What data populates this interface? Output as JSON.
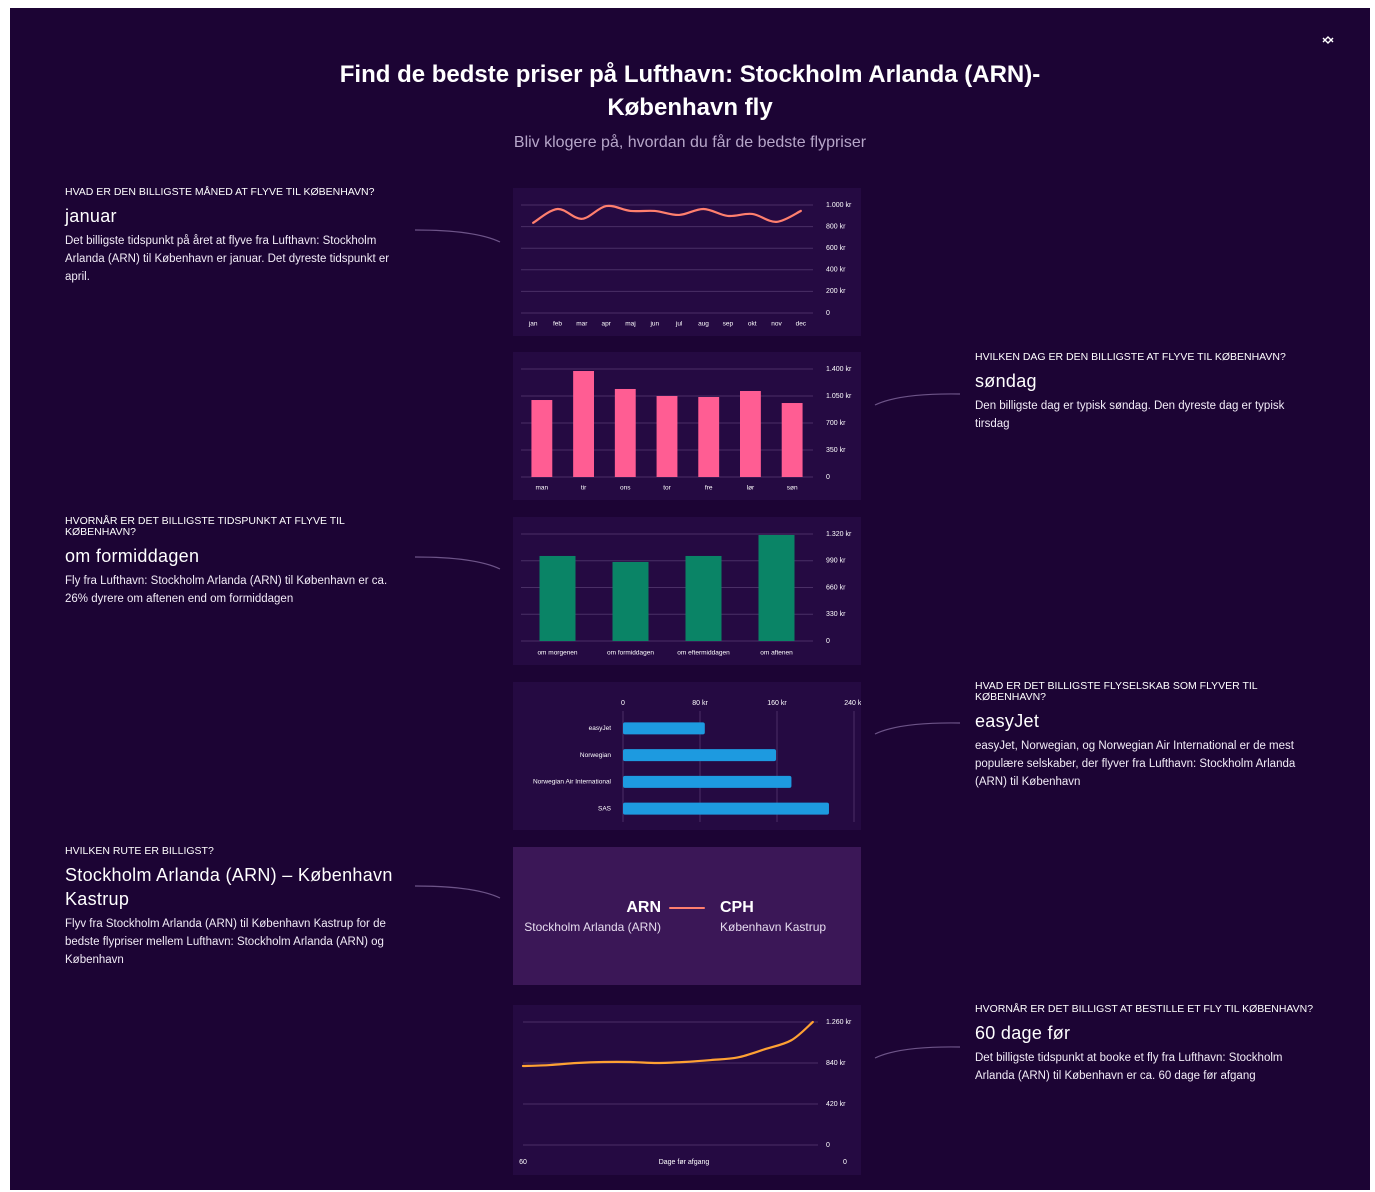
{
  "header": {
    "title": "Find de bedste priser på Lufthavn: Stockholm Arlanda (ARN)-København fly",
    "subtitle": "Bliv klogere på, hvordan du får de bedste flypriser"
  },
  "sections": [
    {
      "question": "HVAD ER DEN BILLIGSTE MÅNED AT FLYVE TIL KØBENHAVN?",
      "answer": "januar",
      "description": "Det billigste tidspunkt på året at flyve fra Lufthavn: Stockholm Arlanda (ARN) til København er januar. Det dyreste tidspunkt er april."
    },
    {
      "question": "HVILKEN DAG ER DEN BILLIGSTE AT FLYVE TIL KØBENHAVN?",
      "answer": "søndag",
      "description": "Den billigste dag er typisk søndag. Den dyreste dag er typisk tirsdag"
    },
    {
      "question": "HVORNÅR ER DET BILLIGSTE TIDSPUNKT AT FLYVE TIL KØBENHAVN?",
      "answer": "om formiddagen",
      "description": "Fly fra Lufthavn: Stockholm Arlanda (ARN) til København er ca. 26% dyrere om aftenen end om formiddagen"
    },
    {
      "question": "HVAD ER DET BILLIGSTE FLYSELSKAB SOM FLYVER TIL KØBENHAVN?",
      "answer": "easyJet",
      "description": "easyJet, Norwegian, og Norwegian Air International er de mest populære selskaber, der flyver fra Lufthavn: Stockholm Arlanda (ARN) til København"
    },
    {
      "question": "HVILKEN RUTE ER BILLIGST?",
      "answer": "Stockholm Arlanda (ARN) – København Kastrup",
      "description": "Flyv fra Stockholm Arlanda (ARN) til København Kastrup for de bedste flypriser mellem Lufthavn: Stockholm Arlanda (ARN) og København"
    },
    {
      "question": "HVORNÅR ER DET BILLIGST AT BESTILLE ET FLY TIL KØBENHAVN?",
      "answer": "60 dage før",
      "description": "Det billigste tidspunkt at booke et fly fra Lufthavn: Stockholm Arlanda (ARN) til København er ca. 60 dage før afgang"
    }
  ],
  "route": {
    "from_code": "ARN",
    "from_name": "Stockholm Arlanda (ARN)",
    "to_code": "CPH",
    "to_name": "København Kastrup"
  },
  "chart_data": [
    {
      "type": "line",
      "categories": [
        "jan",
        "feb",
        "mar",
        "apr",
        "maj",
        "jun",
        "jul",
        "aug",
        "sep",
        "okt",
        "nov",
        "dec"
      ],
      "values": [
        835,
        963,
        872,
        990,
        945,
        945,
        908,
        963,
        899,
        917,
        844,
        945
      ],
      "color": "#ff7f6e",
      "ylim": [
        0,
        1000
      ],
      "yticks": [
        0,
        {
          "value": 200,
          "label": "200 kr"
        },
        {
          "value": 400,
          "label": "400 kr"
        },
        {
          "value": 600,
          "label": "600 kr"
        },
        {
          "value": 800,
          "label": "800 kr"
        },
        {
          "value": 1000,
          "label": "1.000 kr"
        }
      ],
      "grid": true
    },
    {
      "type": "bar",
      "categories": [
        "man",
        "tir",
        "ons",
        "tor",
        "fre",
        "lør",
        "søn"
      ],
      "values": [
        998,
        1374,
        1141,
        1050,
        1037,
        1115,
        959
      ],
      "color": "#ff5d93",
      "ylim": [
        0,
        1400
      ],
      "yticks": [
        0,
        {
          "value": 350,
          "label": "350 kr"
        },
        {
          "value": 700,
          "label": "700 kr"
        },
        {
          "value": 1050,
          "label": "1.050 kr"
        },
        {
          "value": 1400,
          "label": "1.400 kr"
        }
      ],
      "grid": true
    },
    {
      "type": "bar",
      "categories": [
        "om morgenen",
        "om formiddagen",
        "om eftermiddagen",
        "om aftenen"
      ],
      "values": [
        1049,
        975,
        1049,
        1308
      ],
      "color": "#0a8466",
      "ylim": [
        0,
        1320
      ],
      "yticks": [
        0,
        {
          "value": 330,
          "label": "330 kr"
        },
        {
          "value": 660,
          "label": "660 kr"
        },
        {
          "value": 990,
          "label": "990 kr"
        },
        {
          "value": 1320,
          "label": "1.320 kr"
        }
      ],
      "grid": true
    },
    {
      "type": "barh",
      "categories": [
        "easyJet",
        "Norwegian",
        "Norwegian Air International",
        "SAS"
      ],
      "values": [
        85,
        159,
        175,
        214
      ],
      "color": "#1d9ae0",
      "xlim": [
        0,
        240
      ],
      "xticks": [
        0,
        {
          "value": 80,
          "label": "80 kr"
        },
        {
          "value": 160,
          "label": "160 kr"
        },
        {
          "value": 240,
          "label": "240 kr"
        }
      ],
      "grid": true
    },
    {
      "type": "line",
      "x": [
        60,
        55,
        50,
        45,
        40,
        35,
        30,
        25,
        20,
        15,
        10,
        6
      ],
      "values": [
        809,
        819,
        840,
        850,
        850,
        840,
        850,
        870,
        897,
        980,
        1073,
        1260
      ],
      "color": "#ffa133",
      "xlim": [
        60,
        0
      ],
      "xticks": [
        60,
        0
      ],
      "xlabel": "Dage før afgang",
      "ylim": [
        0,
        1260
      ],
      "yticks": [
        0,
        {
          "value": 420,
          "label": "420 kr"
        },
        {
          "value": 840,
          "label": "840 kr"
        },
        {
          "value": 1260,
          "label": "1.260 kr"
        }
      ],
      "grid": true
    }
  ]
}
